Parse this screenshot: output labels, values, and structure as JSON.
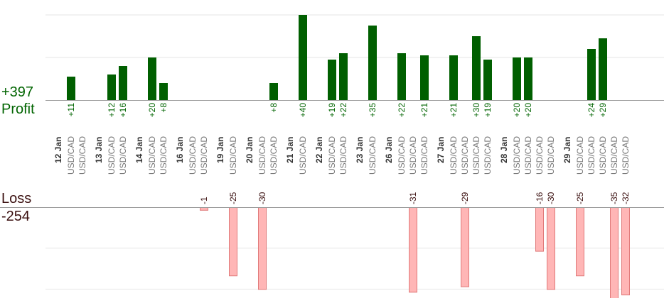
{
  "summary": {
    "profit_total": "+397",
    "profit_label": "Profit",
    "loss_label": "Loss",
    "loss_total": "-254"
  },
  "colors": {
    "profit_bar": "#005f00",
    "profit_text": "#006400",
    "loss_bar": "#ffb6b6",
    "loss_border": "#e07a7a",
    "loss_text": "#3a0f0f",
    "date_text": "#333333",
    "pair_text": "#777777",
    "grid": "#e6e6e6",
    "axis": "#999999"
  },
  "chart_data": {
    "type": "bar",
    "title": "",
    "profit_axis_max": 40,
    "loss_axis_max": 30,
    "grid": true,
    "days": [
      {
        "date": "12 Jan",
        "trades": [
          {
            "pair": "USD/CAD",
            "value": 11
          },
          {
            "pair": "USD/CAD",
            "value": null
          }
        ]
      },
      {
        "date": "13 Jan",
        "trades": [
          {
            "pair": "USD/CAD",
            "value": 12
          },
          {
            "pair": "USD/CAD",
            "value": 16
          }
        ]
      },
      {
        "date": "14 Jan",
        "trades": [
          {
            "pair": "USD/CAD",
            "value": 20
          },
          {
            "pair": "USD/CAD",
            "value": 8
          }
        ]
      },
      {
        "date": "16 Jan",
        "trades": [
          {
            "pair": "USD/CAD",
            "value": null
          },
          {
            "pair": "USD/CAD",
            "value": -1
          }
        ]
      },
      {
        "date": "19 Jan",
        "trades": [
          {
            "pair": "USD/CAD",
            "value": -25
          }
        ]
      },
      {
        "date": "20 Jan",
        "trades": [
          {
            "pair": "USD/CAD",
            "value": -30
          },
          {
            "pair": "USD/CAD",
            "value": 8
          }
        ]
      },
      {
        "date": "21 Jan",
        "trades": [
          {
            "pair": "USD/CAD",
            "value": 40
          }
        ]
      },
      {
        "date": "22 Jan",
        "trades": [
          {
            "pair": "USD/CAD",
            "value": 19
          },
          {
            "pair": "USD/CAD",
            "value": 22
          }
        ]
      },
      {
        "date": "23 Jan",
        "trades": [
          {
            "pair": "USD/CAD",
            "value": 35
          }
        ]
      },
      {
        "date": "26 Jan",
        "trades": [
          {
            "pair": "USD/CAD",
            "value": 22
          },
          {
            "pair": "USD/CAD",
            "value": -31
          },
          {
            "pair": "USD/CAD",
            "value": 21
          }
        ]
      },
      {
        "date": "27 Jan",
        "trades": [
          {
            "pair": "USD/CAD",
            "value": 21
          },
          {
            "pair": "USD/CAD",
            "value": -29
          },
          {
            "pair": "USD/CAD",
            "value": 30
          },
          {
            "pair": "USD/CAD",
            "value": 19
          }
        ]
      },
      {
        "date": "28 Jan",
        "trades": [
          {
            "pair": "USD/CAD",
            "value": 20
          },
          {
            "pair": "USD/CAD",
            "value": 20
          },
          {
            "pair": "USD/CAD",
            "value": -16
          },
          {
            "pair": "USD/CAD",
            "value": -30
          }
        ]
      },
      {
        "date": "29 Jan",
        "trades": [
          {
            "pair": "USD/CAD",
            "value": -25
          },
          {
            "pair": "USD/CAD",
            "value": 24
          },
          {
            "pair": "USD/CAD",
            "value": 29
          },
          {
            "pair": "USD/CAD",
            "value": -35
          },
          {
            "pair": "USD/CAD",
            "value": -32
          }
        ]
      }
    ]
  }
}
